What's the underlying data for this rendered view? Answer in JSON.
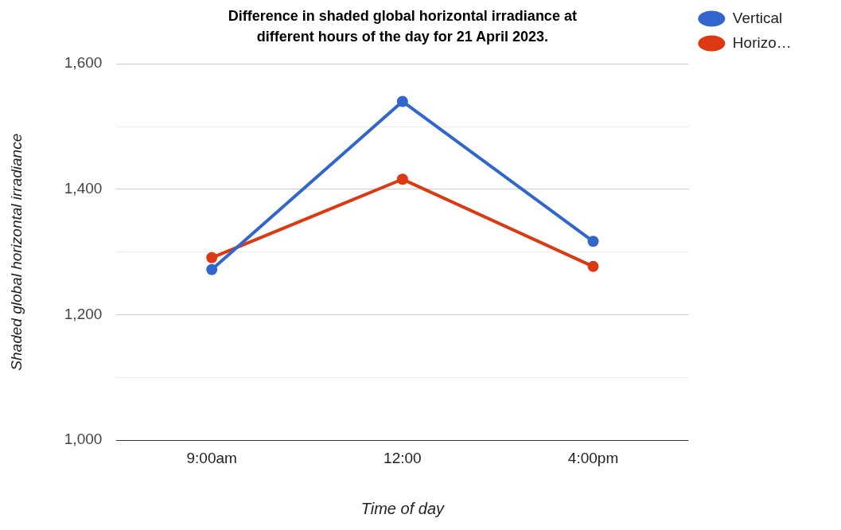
{
  "chart_data": {
    "type": "line",
    "title": "Difference in shaded global horizontal irradiance at different hours of the day for 21 April 2023.",
    "xlabel": "Time of day",
    "ylabel": "Shaded global horizontal irradiance",
    "categories": [
      "9:00am",
      "12:00",
      "4:00pm"
    ],
    "series": [
      {
        "name": "Vertical",
        "color": "#3366cc",
        "values": [
          1272,
          1540,
          1317
        ]
      },
      {
        "name": "Horizo…",
        "color": "#dc3912",
        "values": [
          1291,
          1416,
          1277
        ]
      }
    ],
    "ylim": [
      1000,
      1600
    ],
    "yticks": [
      {
        "value": 1000,
        "label": "1,000"
      },
      {
        "value": 1100,
        "label": null
      },
      {
        "value": 1200,
        "label": "1,200"
      },
      {
        "value": 1300,
        "label": null
      },
      {
        "value": 1400,
        "label": "1,400"
      },
      {
        "value": 1500,
        "label": null
      },
      {
        "value": 1600,
        "label": "1,600"
      }
    ],
    "grid": "y",
    "legend": "top right",
    "marker": "circle",
    "line_style": "solid"
  }
}
